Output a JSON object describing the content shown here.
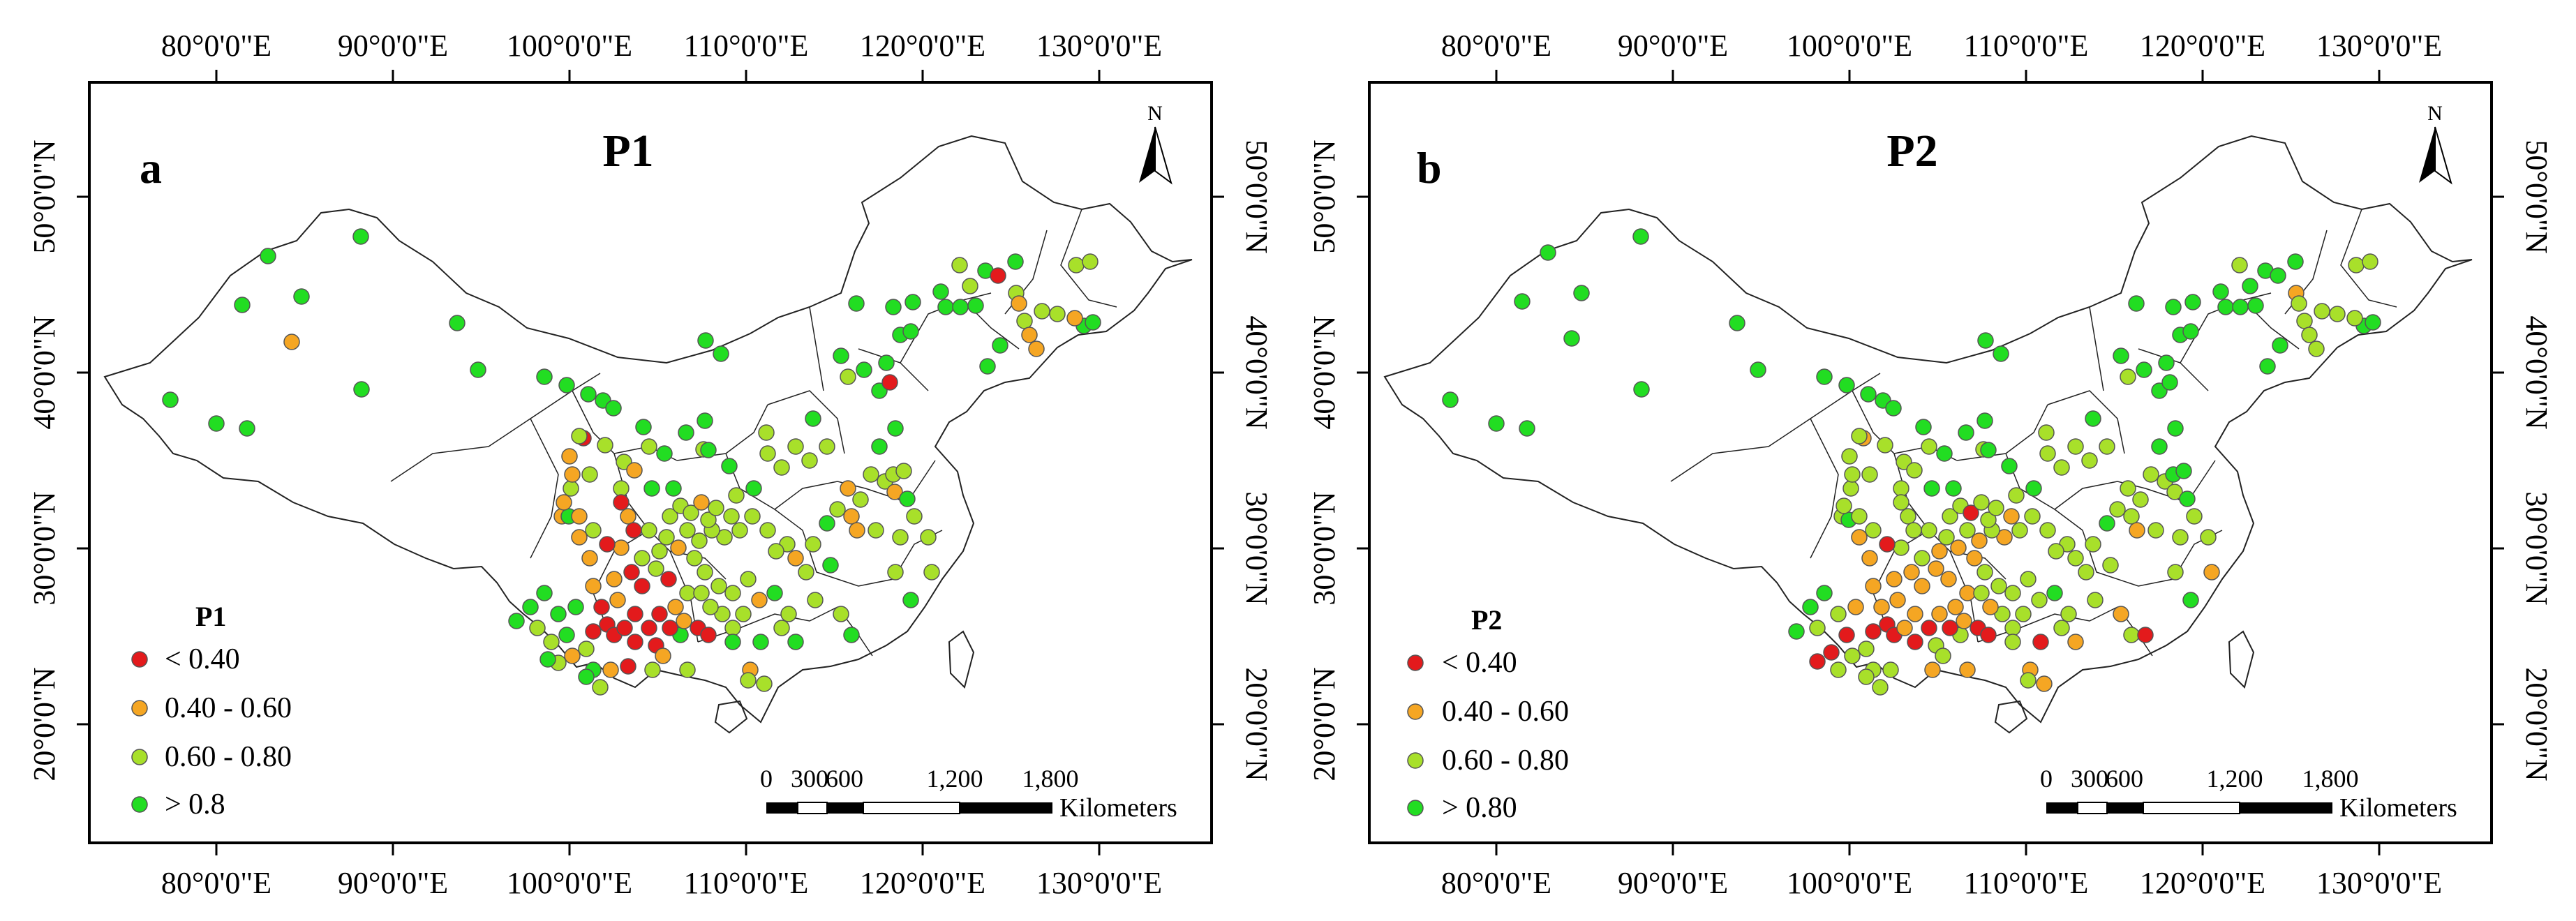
{
  "panels": [
    {
      "letter": "a",
      "title": "P1",
      "legend_title": "P1",
      "x_ticks": [
        "80°0'0\"E",
        "90°0'0\"E",
        "100°0'0\"E",
        "110°0'0\"E",
        "120°0'0\"E",
        "130°0'0\"E"
      ],
      "y_ticks": [
        "20°0'0\"N",
        "30°0'0\"N",
        "40°0'0\"N",
        "50°0'0\"N"
      ],
      "north": "N",
      "scale_numbers": [
        "0",
        "300",
        "600",
        "1,200",
        "1,800"
      ],
      "scale_unit": "Kilometers",
      "legend": [
        {
          "label": "< 0.40",
          "color": "#e31a1c"
        },
        {
          "label": "0.40 - 0.60",
          "color": "#f5a623"
        },
        {
          "label": "0.60 - 0.80",
          "color": "#a8e02a"
        },
        {
          "label": "> 0.8",
          "color": "#22dd22"
        }
      ]
    },
    {
      "letter": "b",
      "title": "P2",
      "legend_title": "P2",
      "x_ticks": [
        "80°0'0\"E",
        "90°0'0\"E",
        "100°0'0\"E",
        "110°0'0\"E",
        "120°0'0\"E",
        "130°0'0\"E"
      ],
      "y_ticks": [
        "20°0'0\"N",
        "30°0'0\"N",
        "40°0'0\"N",
        "50°0'0\"N"
      ],
      "north": "N",
      "scale_numbers": [
        "0",
        "300",
        "600",
        "1,200",
        "1,800"
      ],
      "scale_unit": "Kilometers",
      "legend": [
        {
          "label": "< 0.40",
          "color": "#e31a1c"
        },
        {
          "label": "0.40 - 0.60",
          "color": "#f5a623"
        },
        {
          "label": "0.60 - 0.80",
          "color": "#a8e02a"
        },
        {
          "label": "> 0.80",
          "color": "#22dd22"
        }
      ]
    }
  ]
}
